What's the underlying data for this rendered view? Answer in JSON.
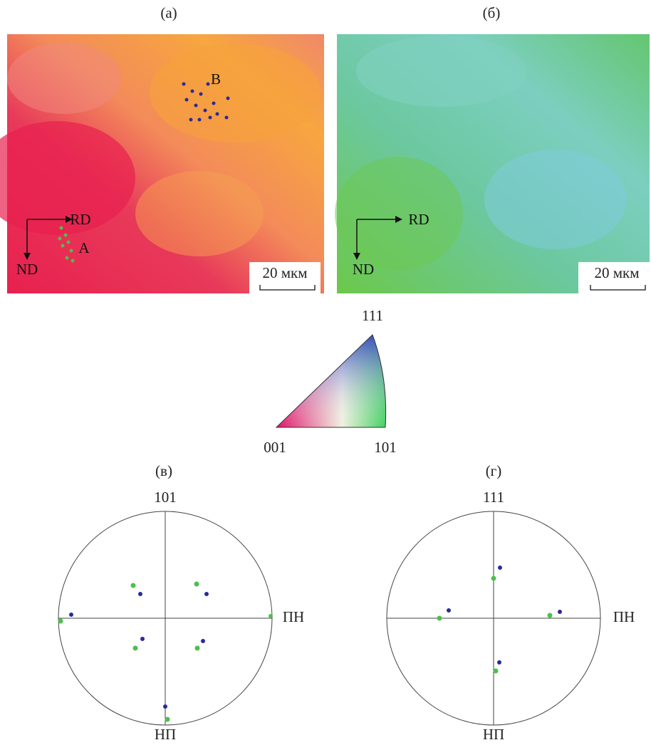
{
  "maps": [
    {
      "label": "(а)",
      "rd": "RD",
      "nd": "ND",
      "scale": "20 мкм",
      "point_a": "A",
      "point_b": "B"
    },
    {
      "label": "(б)",
      "rd": "RD",
      "nd": "ND",
      "scale": "20 мкм"
    }
  ],
  "triangle": {
    "top": "111",
    "left": "001",
    "right": "101"
  },
  "pole_figures": [
    {
      "label": "(в)",
      "top": "101",
      "right": "ПН",
      "bottom": "НП"
    },
    {
      "label": "(г)",
      "top": "111",
      "right": "ПН",
      "bottom": "НП"
    }
  ]
}
